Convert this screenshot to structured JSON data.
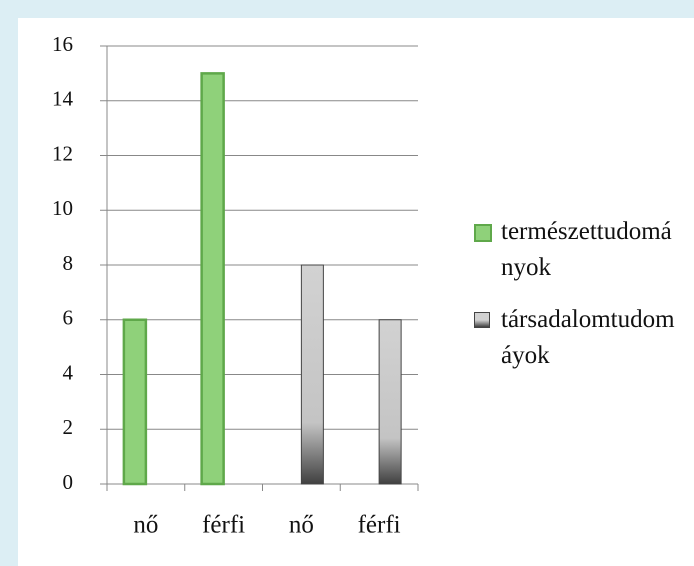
{
  "chart_data": {
    "type": "bar",
    "categories": [
      "nő",
      "férfi",
      "nő",
      "férfi"
    ],
    "series": [
      {
        "name": "természettudományok",
        "color": "#8fd17a",
        "values": [
          6,
          15,
          null,
          null
        ]
      },
      {
        "name": "társadalomtudomáyok",
        "color": "#c8c8c8",
        "values": [
          null,
          null,
          8,
          6
        ]
      }
    ],
    "ylim": [
      0,
      16
    ],
    "yticks": [
      0,
      2,
      4,
      6,
      8,
      10,
      12,
      14,
      16
    ],
    "grid": true,
    "legend": "right"
  }
}
